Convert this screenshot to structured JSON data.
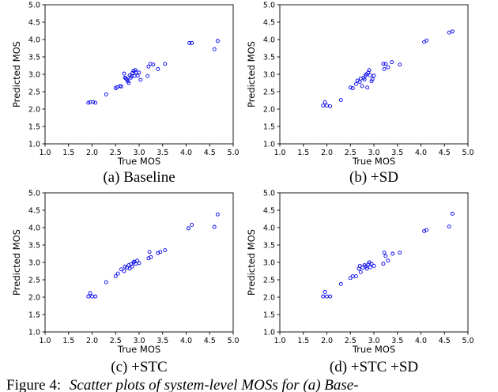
{
  "figure_caption": {
    "prefix": "Figure 4:",
    "text": "Scatter plots of system-level MOSs for (a) Base-"
  },
  "chart_data": [
    {
      "type": "scatter",
      "caption": "(a) Baseline",
      "xlabel": "True MOS",
      "ylabel": "Predicted MOS",
      "xlim": [
        1.0,
        5.0
      ],
      "ylim": [
        1.0,
        5.0
      ],
      "xticks": [
        "1.0",
        "1.5",
        "2.0",
        "2.5",
        "3.0",
        "3.5",
        "4.0",
        "4.5",
        "5.0"
      ],
      "yticks": [
        "1.0",
        "1.5",
        "2.0",
        "2.5",
        "3.0",
        "3.5",
        "4.0",
        "4.5",
        "5.0"
      ],
      "grid": false,
      "color": "#0000ee",
      "x": [
        1.92,
        1.96,
        2.02,
        2.07,
        2.3,
        2.5,
        2.53,
        2.59,
        2.62,
        2.68,
        2.7,
        2.72,
        2.74,
        2.76,
        2.78,
        2.8,
        2.82,
        2.84,
        2.86,
        2.88,
        2.9,
        2.92,
        2.94,
        2.97,
        3.0,
        3.03,
        3.18,
        3.2,
        3.24,
        3.3,
        3.4,
        3.55,
        4.07,
        4.12,
        4.6,
        4.67
      ],
      "y": [
        2.18,
        2.2,
        2.2,
        2.18,
        2.42,
        2.6,
        2.63,
        2.66,
        2.65,
        3.02,
        2.9,
        2.88,
        2.85,
        2.8,
        2.75,
        2.97,
        2.9,
        2.94,
        3.04,
        3.1,
        2.95,
        3.12,
        3.06,
        2.96,
        3.05,
        2.84,
        2.95,
        3.22,
        3.3,
        3.28,
        3.15,
        3.3,
        3.9,
        3.9,
        3.72,
        3.96
      ]
    },
    {
      "type": "scatter",
      "caption": "(b) +SD",
      "xlabel": "True MOS",
      "ylabel": "Predicted MOS",
      "xlim": [
        1.0,
        5.0
      ],
      "ylim": [
        1.0,
        5.0
      ],
      "xticks": [
        "1.0",
        "1.5",
        "2.0",
        "2.5",
        "3.0",
        "3.5",
        "4.0",
        "4.5",
        "5.0"
      ],
      "yticks": [
        "1.0",
        "1.5",
        "2.0",
        "2.5",
        "3.0",
        "3.5",
        "4.0",
        "4.5",
        "5.0"
      ],
      "grid": false,
      "color": "#0000ee",
      "x": [
        1.92,
        1.96,
        2.0,
        2.07,
        2.3,
        2.5,
        2.55,
        2.62,
        2.65,
        2.7,
        2.72,
        2.75,
        2.78,
        2.8,
        2.82,
        2.84,
        2.86,
        2.88,
        2.9,
        2.92,
        2.95,
        2.97,
        3.0,
        3.2,
        3.22,
        3.25,
        3.3,
        3.38,
        3.55,
        4.07,
        4.12,
        4.6,
        4.67
      ],
      "y": [
        2.1,
        2.2,
        2.1,
        2.08,
        2.26,
        2.62,
        2.6,
        2.72,
        2.82,
        2.78,
        2.88,
        2.66,
        2.9,
        2.85,
        2.96,
        3.0,
        2.62,
        3.05,
        3.12,
        2.97,
        2.8,
        2.86,
        2.96,
        3.3,
        3.15,
        3.3,
        3.2,
        3.35,
        3.28,
        3.93,
        3.97,
        4.2,
        4.23
      ]
    },
    {
      "type": "scatter",
      "caption": "(c) +STC",
      "xlabel": "True MOS",
      "ylabel": "Predicted MOS",
      "xlim": [
        1.0,
        5.0
      ],
      "ylim": [
        1.0,
        5.0
      ],
      "xticks": [
        "1.0",
        "1.5",
        "2.0",
        "2.5",
        "3.0",
        "3.5",
        "4.0",
        "4.5",
        "5.0"
      ],
      "yticks": [
        "1.0",
        "1.5",
        "2.0",
        "2.5",
        "3.0",
        "3.5",
        "4.0",
        "4.5",
        "5.0"
      ],
      "grid": false,
      "color": "#0000ee",
      "x": [
        1.92,
        1.96,
        2.0,
        2.07,
        2.3,
        2.5,
        2.55,
        2.62,
        2.68,
        2.7,
        2.74,
        2.78,
        2.8,
        2.83,
        2.85,
        2.88,
        2.9,
        2.93,
        2.96,
        3.0,
        3.2,
        3.22,
        3.25,
        3.4,
        3.45,
        3.55,
        4.05,
        4.12,
        4.6,
        4.67
      ],
      "y": [
        2.02,
        2.12,
        2.02,
        2.02,
        2.43,
        2.6,
        2.68,
        2.8,
        2.75,
        2.88,
        2.85,
        2.92,
        2.82,
        2.95,
        2.88,
        3.0,
        3.02,
        2.96,
        3.05,
        2.98,
        3.12,
        3.3,
        3.15,
        3.27,
        3.3,
        3.35,
        3.98,
        4.08,
        4.02,
        4.38
      ]
    },
    {
      "type": "scatter",
      "caption": "(d) +STC +SD",
      "xlabel": "True MOS",
      "ylabel": "Predicted MOS",
      "xlim": [
        1.0,
        5.0
      ],
      "ylim": [
        1.0,
        5.0
      ],
      "xticks": [
        "1.0",
        "1.5",
        "2.0",
        "2.5",
        "3.0",
        "3.5",
        "4.0",
        "4.5",
        "5.0"
      ],
      "yticks": [
        "1.0",
        "1.5",
        "2.0",
        "2.5",
        "3.0",
        "3.5",
        "4.0",
        "4.5",
        "5.0"
      ],
      "grid": false,
      "color": "#0000ee",
      "x": [
        1.92,
        1.96,
        2.0,
        2.07,
        2.3,
        2.5,
        2.55,
        2.62,
        2.68,
        2.7,
        2.72,
        2.76,
        2.8,
        2.82,
        2.85,
        2.88,
        2.9,
        2.92,
        2.95,
        3.0,
        3.2,
        3.22,
        3.25,
        3.3,
        3.4,
        3.55,
        4.07,
        4.12,
        4.6,
        4.67
      ],
      "y": [
        2.02,
        2.15,
        2.02,
        2.02,
        2.38,
        2.55,
        2.6,
        2.6,
        2.82,
        2.9,
        2.72,
        2.85,
        2.92,
        2.88,
        2.82,
        2.94,
        3.0,
        2.86,
        2.96,
        2.9,
        2.96,
        3.28,
        3.18,
        3.05,
        3.25,
        3.28,
        3.9,
        3.93,
        4.03,
        4.4
      ]
    }
  ]
}
